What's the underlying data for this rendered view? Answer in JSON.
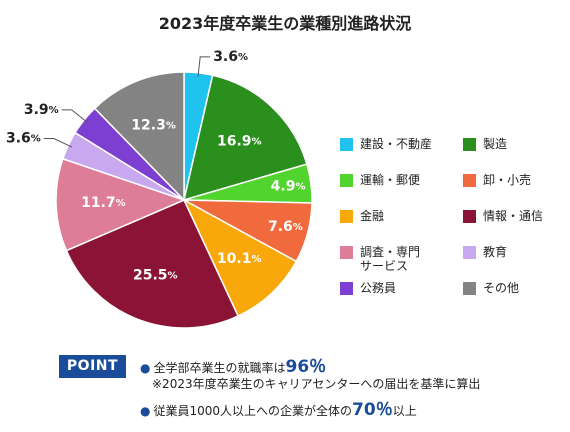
{
  "chart_data": {
    "type": "pie",
    "title": "2023年度卒業生の業種別進路状況",
    "unit": "%",
    "start_angle_deg": 0,
    "direction": "clockwise",
    "slices": [
      {
        "label": "建設・不動産",
        "value": 3.6,
        "color": "#1fc3ee",
        "label_position": "outside"
      },
      {
        "label": "製造",
        "value": 16.9,
        "color": "#2b8f1d",
        "label_position": "inside"
      },
      {
        "label": "運輸・郵便",
        "value": 4.9,
        "color": "#52d42f",
        "label_position": "inside"
      },
      {
        "label": "卸・小売",
        "value": 7.6,
        "color": "#f06a3e",
        "label_position": "inside"
      },
      {
        "label": "金融",
        "value": 10.1,
        "color": "#f8a80a",
        "label_position": "inside"
      },
      {
        "label": "情報・通信",
        "value": 25.5,
        "color": "#8b1336",
        "label_position": "inside"
      },
      {
        "label": "調査・専門サービス",
        "value": 11.7,
        "color": "#dd7d98",
        "label_position": "inside"
      },
      {
        "label": "教育",
        "value": 3.6,
        "color": "#c8a8ee",
        "label_position": "outside"
      },
      {
        "label": "公務員",
        "value": 3.9,
        "color": "#7d3fd1",
        "label_position": "outside"
      },
      {
        "label": "その他",
        "value": 12.3,
        "color": "#838383",
        "label_position": "inside"
      }
    ]
  },
  "legend": [
    {
      "label_lines": [
        "建設・不動産"
      ],
      "color": "#1fc3ee"
    },
    {
      "label_lines": [
        "製造"
      ],
      "color": "#2b8f1d"
    },
    {
      "label_lines": [
        "運輸・郵便"
      ],
      "color": "#52d42f"
    },
    {
      "label_lines": [
        "卸・小売"
      ],
      "color": "#f06a3e"
    },
    {
      "label_lines": [
        "金融"
      ],
      "color": "#f8a80a"
    },
    {
      "label_lines": [
        "情報・通信"
      ],
      "color": "#8b1336"
    },
    {
      "label_lines": [
        "調査・専門",
        "サービス"
      ],
      "color": "#dd7d98"
    },
    {
      "label_lines": [
        "教育"
      ],
      "color": "#c8a8ee"
    },
    {
      "label_lines": [
        "公務員"
      ],
      "color": "#7d3fd1"
    },
    {
      "label_lines": [
        "その他"
      ],
      "color": "#838383"
    }
  ],
  "point": {
    "badge": "POINT",
    "bullet_icon": "bullet-circle",
    "line1_prefix": "全学部卒業生の就職率は",
    "line1_value": "96％",
    "line2": "※2023年度卒業生のキャリアセンターへの届出を基準に算出",
    "line3_prefix": "従業員1000人以上への企業が全体の",
    "line3_value": "70％",
    "line3_suffix": "以上"
  }
}
